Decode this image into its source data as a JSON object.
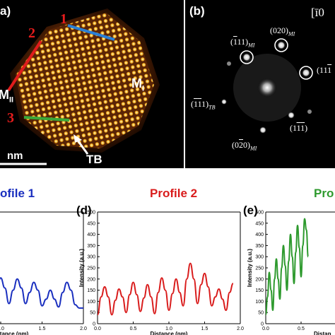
{
  "panel_a": {
    "tag": "a)",
    "region_left": "M",
    "region_left_sub": "II",
    "region_right": "M",
    "region_right_sub": "I",
    "line_numbers": [
      "1",
      "2",
      "3"
    ],
    "scale_unit": "nm",
    "boundary_label": "TB",
    "colors": {
      "line1": "#2a7fd4",
      "line2": "#e01c1c",
      "line3": "#3aa83a",
      "particle": "#e0701a"
    }
  },
  "panel_b": {
    "tag": "(b)",
    "zone_axis": "[ī0",
    "spots": [
      {
        "h": "0",
        "k": "2",
        "l": "0",
        "bar": [
          false,
          false,
          false
        ],
        "sub": "M",
        "subsub": "I",
        "ring": true
      },
      {
        "h": "1",
        "k": "1",
        "l": "1",
        "bar": [
          true,
          false,
          false
        ],
        "sub": "M",
        "subsub": "I",
        "ring": true
      },
      {
        "h": "1",
        "k": "1",
        "l": "1",
        "bar": [
          false,
          false,
          true
        ],
        "sub": "",
        "subsub": "",
        "ring": true
      },
      {
        "h": "1",
        "k": "1",
        "l": "1",
        "bar": [
          true,
          true,
          false
        ],
        "sub": "TB",
        "subsub": "",
        "ring": false
      },
      {
        "h": "1",
        "k": "1",
        "l": "1",
        "bar": [
          false,
          true,
          true
        ],
        "sub": "",
        "subsub": "",
        "ring": false
      },
      {
        "h": "0",
        "k": "2",
        "l": "0",
        "bar": [
          false,
          true,
          false
        ],
        "sub": "M",
        "subsub": "I",
        "ring": false
      }
    ]
  },
  "profiles": {
    "c": {
      "tag": "",
      "title": "ofile 1",
      "color": "#1a2fbf"
    },
    "d": {
      "tag": "(d)",
      "title": "Profile 2",
      "color": "#d91c1c"
    },
    "e": {
      "tag": "(e)",
      "title": "Pro",
      "color": "#2e9a2e"
    }
  },
  "axes": {
    "ylabel": "Intensity (a.u.)",
    "xlabel_full": "Distance (nm)",
    "xlabel_c": "tance (nm)",
    "xlabel_e": "Distan"
  },
  "chart_data": [
    {
      "type": "line",
      "name": "c",
      "title": "ofile 1",
      "xlim": [
        0,
        2.0
      ],
      "ylim": [
        0,
        500
      ],
      "xticks": [
        "1.0",
        "1.5",
        "2.0"
      ],
      "x": [
        0.9,
        0.95,
        1.0,
        1.05,
        1.1,
        1.15,
        1.2,
        1.25,
        1.3,
        1.35,
        1.4,
        1.45,
        1.5,
        1.55,
        1.6,
        1.65,
        1.7,
        1.75,
        1.8,
        1.85,
        1.9,
        1.95,
        2.0
      ],
      "values": [
        120,
        160,
        205,
        160,
        90,
        150,
        200,
        160,
        90,
        140,
        185,
        150,
        80,
        110,
        150,
        110,
        75,
        140,
        185,
        150,
        85,
        70,
        70
      ]
    },
    {
      "type": "line",
      "name": "d",
      "title": "Profile 2",
      "xlim": [
        0,
        2.0
      ],
      "ylim": [
        0,
        500
      ],
      "yticks": [
        "0",
        "50",
        "100",
        "150",
        "200",
        "250",
        "300",
        "350",
        "400",
        "450",
        "500"
      ],
      "xticks": [
        "0.0",
        "0.5",
        "1.0",
        "1.5",
        "2.0"
      ],
      "x": [
        0.0,
        0.05,
        0.1,
        0.15,
        0.2,
        0.25,
        0.3,
        0.35,
        0.4,
        0.45,
        0.5,
        0.55,
        0.6,
        0.65,
        0.7,
        0.75,
        0.8,
        0.85,
        0.9,
        0.95,
        1.0,
        1.05,
        1.1,
        1.15,
        1.2,
        1.25,
        1.3,
        1.35,
        1.4,
        1.45,
        1.5,
        1.55,
        1.6,
        1.65,
        1.7,
        1.75,
        1.8,
        1.85,
        1.9
      ],
      "values": [
        40,
        120,
        165,
        120,
        40,
        105,
        155,
        120,
        50,
        130,
        185,
        130,
        55,
        115,
        175,
        120,
        45,
        140,
        205,
        150,
        60,
        135,
        200,
        140,
        80,
        200,
        270,
        200,
        90,
        175,
        225,
        165,
        80,
        120,
        155,
        110,
        60,
        140,
        180
      ]
    },
    {
      "type": "line",
      "name": "e",
      "title": "Pro",
      "xlim": [
        0,
        0.6
      ],
      "ylim": [
        0,
        500
      ],
      "yticks": [
        "0",
        "50",
        "100",
        "150",
        "200",
        "250",
        "300",
        "350",
        "400",
        "450",
        "500"
      ],
      "xticks": [
        "0.0",
        "0.5"
      ],
      "x": [
        0.0,
        0.025,
        0.05,
        0.075,
        0.1,
        0.125,
        0.15,
        0.175,
        0.2,
        0.225,
        0.25,
        0.275,
        0.3,
        0.325,
        0.35,
        0.375,
        0.4,
        0.425,
        0.45,
        0.475,
        0.5,
        0.525,
        0.55,
        0.575,
        0.6
      ],
      "values": [
        40,
        120,
        230,
        150,
        60,
        200,
        290,
        200,
        110,
        250,
        350,
        260,
        150,
        280,
        400,
        300,
        180,
        320,
        440,
        340,
        210,
        350,
        470,
        420,
        300
      ]
    }
  ]
}
